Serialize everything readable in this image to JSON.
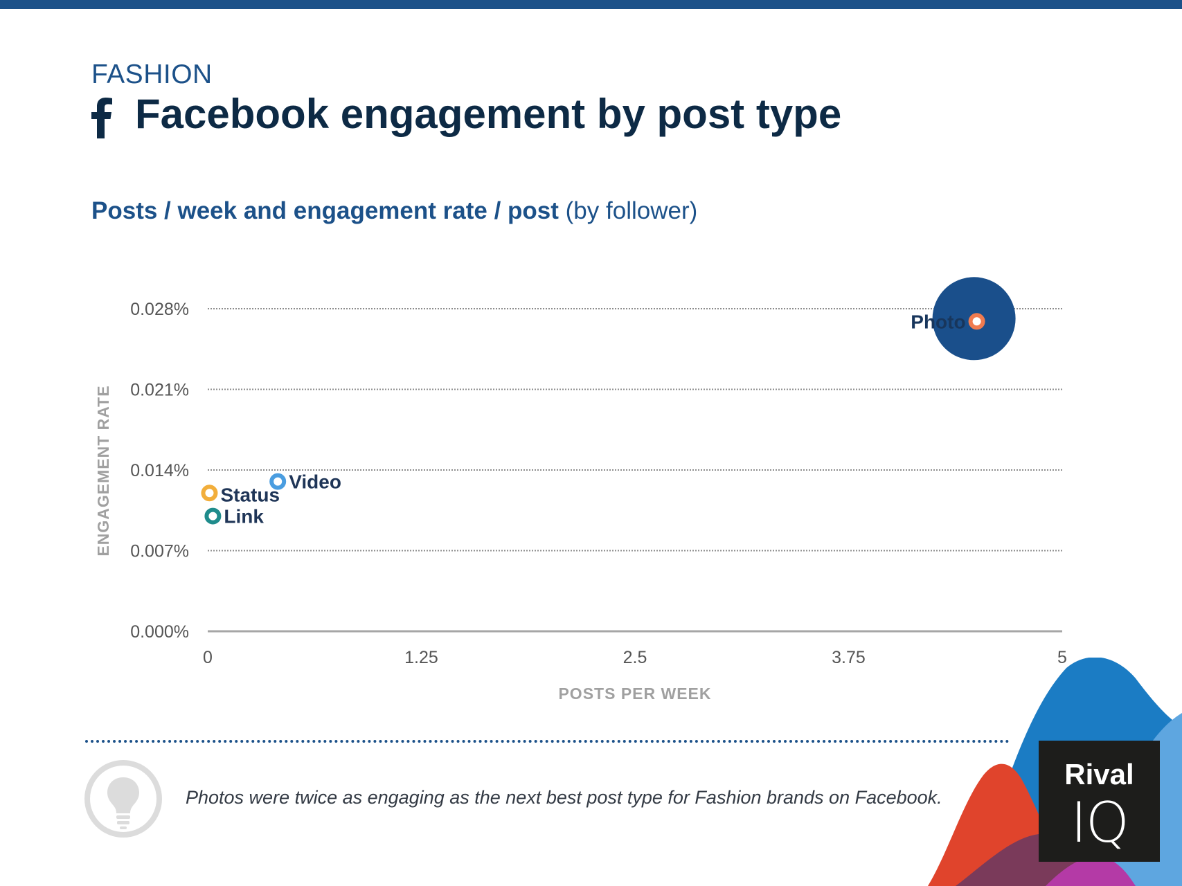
{
  "header": {
    "category": "FASHION",
    "title": "Facebook engagement by post type",
    "subtitle_bold": "Posts / week and engagement rate / post",
    "subtitle_regular": "(by follower)"
  },
  "footer": {
    "insight": "Photos were twice as engaging as the next best post type for Fashion brands on Facebook.",
    "brand_line1": "Rival",
    "brand_line2": "IQ"
  },
  "colors": {
    "brand_blue": "#1c5189",
    "title_navy": "#0d2a45",
    "grid": "#999999"
  },
  "chart_data": {
    "type": "scatter",
    "xlabel": "POSTS PER WEEK",
    "ylabel": "ENGAGEMENT RATE",
    "xlim": [
      0,
      5
    ],
    "ylim": [
      0,
      0.028
    ],
    "x_ticks": [
      "0",
      "1.25",
      "2.5",
      "3.75",
      "5"
    ],
    "x_tick_values": [
      0,
      1.25,
      2.5,
      3.75,
      5
    ],
    "y_ticks": [
      "0.000%",
      "0.007%",
      "0.014%",
      "0.021%",
      "0.028%"
    ],
    "y_tick_values": [
      0,
      0.007,
      0.014,
      0.021,
      0.028
    ],
    "grid": true,
    "points": [
      {
        "label": "Photo",
        "x": 4.5,
        "y": 0.0269,
        "color": "#f07b4f",
        "bubble": true,
        "bubble_color": "#1a4f8b"
      },
      {
        "label": "Video",
        "x": 0.41,
        "y": 0.013,
        "color": "#4a9de0"
      },
      {
        "label": "Status",
        "x": 0.01,
        "y": 0.012,
        "color": "#f2ae3b"
      },
      {
        "label": "Link",
        "x": 0.03,
        "y": 0.01,
        "color": "#1f8c8c"
      }
    ]
  }
}
